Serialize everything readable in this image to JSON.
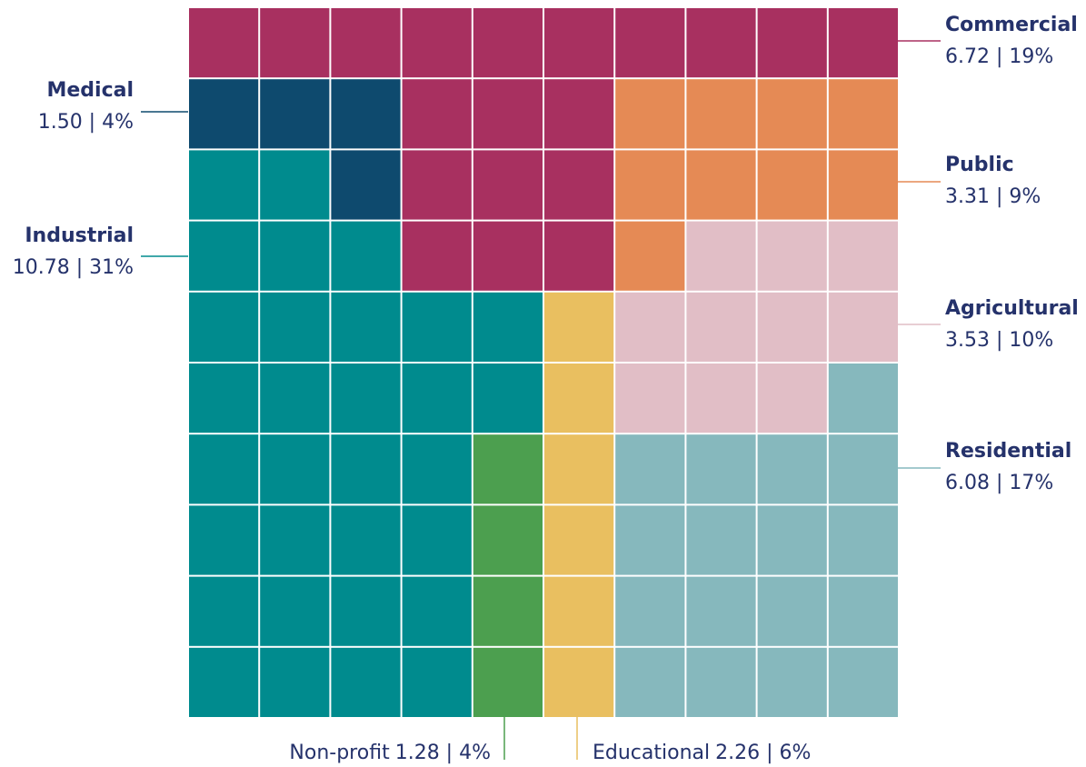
{
  "chart_data": {
    "type": "waffle",
    "categories": [
      {
        "name": "Commercial",
        "value": 6.72,
        "percent": 19,
        "label": "6.72 | 19%",
        "color": "#a83060"
      },
      {
        "name": "Medical",
        "value": 1.5,
        "percent": 4,
        "label": "1.50 | 4%",
        "color": "#0e4a6e"
      },
      {
        "name": "Public",
        "value": 3.31,
        "percent": 9,
        "label": "3.31 | 9%",
        "color": "#e58a55"
      },
      {
        "name": "Industrial",
        "value": 10.78,
        "percent": 31,
        "label": "10.78 | 31%",
        "color": "#008b8e"
      },
      {
        "name": "Agricultural",
        "value": 3.53,
        "percent": 10,
        "label": "3.53 | 10%",
        "color": "#e1bec6"
      },
      {
        "name": "Residential",
        "value": 6.08,
        "percent": 17,
        "label": "6.08 | 17%",
        "color": "#86b8bd"
      },
      {
        "name": "Non-profit",
        "value": 1.28,
        "percent": 4,
        "label": "1.28 | 4%",
        "color": "#4c9f4f"
      },
      {
        "name": "Educational",
        "value": 2.26,
        "percent": 6,
        "label": "2.26 | 6%",
        "color": "#e9bf60"
      }
    ]
  }
}
